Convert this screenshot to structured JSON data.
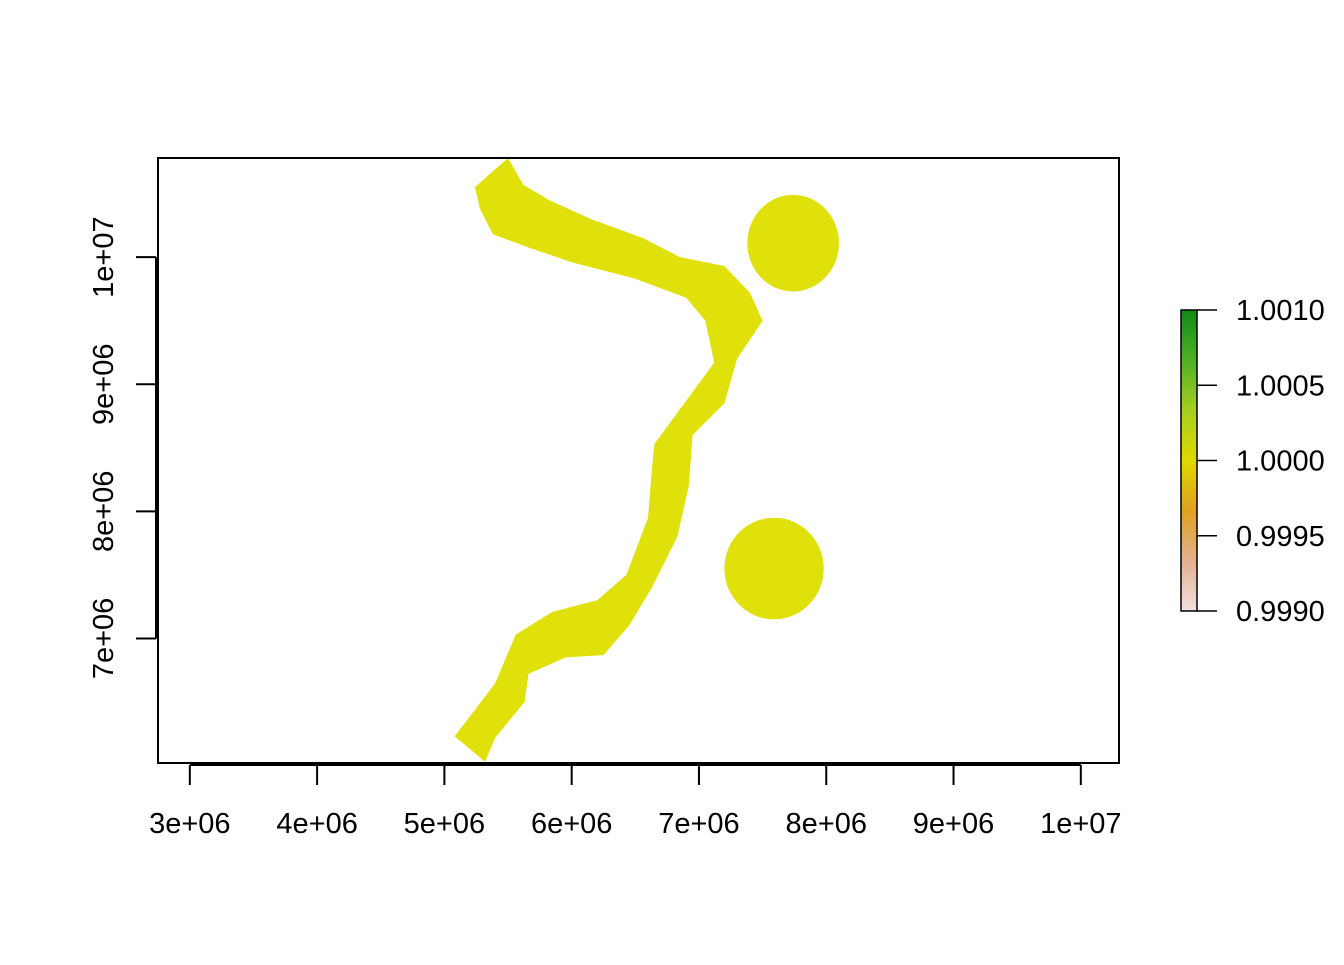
{
  "chart_data": {
    "type": "heatmap",
    "title": "",
    "xlabel": "",
    "ylabel": "",
    "xlim": [
      2750000,
      10300000
    ],
    "ylim": [
      6020000,
      10780000
    ],
    "x_ticks": [
      3000000,
      4000000,
      5000000,
      6000000,
      7000000,
      8000000,
      9000000,
      10000000
    ],
    "x_tick_labels": [
      "3e+06",
      "4e+06",
      "5e+06",
      "6e+06",
      "7e+06",
      "8e+06",
      "9e+06",
      "1e+07"
    ],
    "y_ticks": [
      7000000,
      8000000,
      9000000,
      10000000
    ],
    "y_tick_labels": [
      "7e+06",
      "8e+06",
      "9e+06",
      "1e+07"
    ],
    "grid": false,
    "raster_value": 1.0,
    "fill_color": "#E0E00A",
    "legend": {
      "placement": "right",
      "range": [
        0.999,
        1.001
      ],
      "ticks": [
        0.999,
        0.9995,
        1.0,
        1.0005,
        1.001
      ],
      "tick_labels": [
        "0.9990",
        "0.9995",
        "1.0000",
        "1.0005",
        "1.0010"
      ],
      "colors": [
        "#F2E0E0",
        "#E2B090",
        "#E0A020",
        "#E0D800",
        "#A6CF1F",
        "#4FB026",
        "#0E8A16"
      ]
    },
    "regions": [
      {
        "name": "corridor",
        "value": 1.0,
        "polygon": [
          [
            5500000,
            10780000
          ],
          [
            5620000,
            10570000
          ],
          [
            5820000,
            10450000
          ],
          [
            6150000,
            10300000
          ],
          [
            6560000,
            10150000
          ],
          [
            6850000,
            10000000
          ],
          [
            7200000,
            9930000
          ],
          [
            7400000,
            9720000
          ],
          [
            7500000,
            9500000
          ],
          [
            7300000,
            9200000
          ],
          [
            7200000,
            8850000
          ],
          [
            6950000,
            8600000
          ],
          [
            6920000,
            8200000
          ],
          [
            6830000,
            7800000
          ],
          [
            6630000,
            7400000
          ],
          [
            6450000,
            7100000
          ],
          [
            6250000,
            6870000
          ],
          [
            5950000,
            6850000
          ],
          [
            5660000,
            6720000
          ],
          [
            5630000,
            6500000
          ],
          [
            5400000,
            6220000
          ],
          [
            5320000,
            6030000
          ],
          [
            5080000,
            6230000
          ],
          [
            5250000,
            6450000
          ],
          [
            5400000,
            6650000
          ],
          [
            5560000,
            7030000
          ],
          [
            5850000,
            7210000
          ],
          [
            6200000,
            7300000
          ],
          [
            6430000,
            7500000
          ],
          [
            6600000,
            7950000
          ],
          [
            6630000,
            8330000
          ],
          [
            6650000,
            8530000
          ],
          [
            6900000,
            8870000
          ],
          [
            7120000,
            9170000
          ],
          [
            7050000,
            9500000
          ],
          [
            6900000,
            9680000
          ],
          [
            6500000,
            9830000
          ],
          [
            6000000,
            9960000
          ],
          [
            5650000,
            10080000
          ],
          [
            5380000,
            10180000
          ],
          [
            5280000,
            10380000
          ],
          [
            5240000,
            10550000
          ]
        ]
      },
      {
        "name": "upper-disk",
        "value": 1.0,
        "center": [
          7740000,
          10110000
        ],
        "radius": [
          360000,
          380000
        ]
      },
      {
        "name": "lower-disk",
        "value": 1.0,
        "center": [
          7590000,
          7550000
        ],
        "radius": [
          390000,
          400000
        ]
      }
    ]
  }
}
